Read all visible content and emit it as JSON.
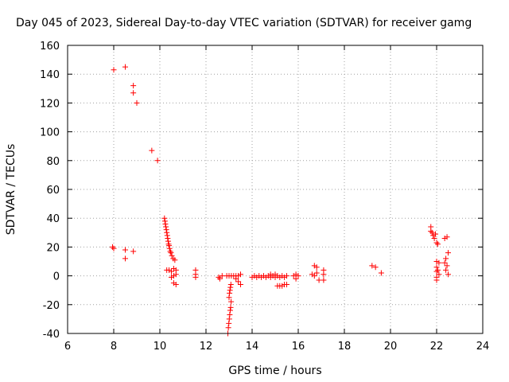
{
  "chart_data": {
    "type": "scatter",
    "title": "Day 045 of 2023, Sidereal Day-to-day VTEC variation (SDTVAR) for receiver gamg",
    "xlabel": "GPS time / hours",
    "ylabel": "SDTVAR / TECUs",
    "xlim": [
      6,
      24
    ],
    "ylim": [
      -40,
      160
    ],
    "xticks": [
      6,
      8,
      10,
      12,
      14,
      16,
      18,
      20,
      22,
      24
    ],
    "xtick_labels": [
      "6",
      "8",
      "10",
      "12",
      "14",
      "16",
      "18",
      "20",
      "22",
      "24"
    ],
    "yticks": [
      -40,
      -20,
      0,
      20,
      40,
      60,
      80,
      100,
      120,
      140,
      160
    ],
    "ytick_labels": [
      "-40",
      "-20",
      "0",
      "20",
      "40",
      "60",
      "80",
      "100",
      "120",
      "140",
      "160"
    ],
    "grid": true,
    "marker": "+",
    "color": "#ff0000",
    "series": [
      {
        "name": "gamg",
        "points": [
          [
            8.0,
            143
          ],
          [
            8.5,
            145
          ],
          [
            8.85,
            132
          ],
          [
            8.85,
            127
          ],
          [
            9.0,
            120
          ],
          [
            9.65,
            87
          ],
          [
            9.9,
            80
          ],
          [
            7.95,
            20
          ],
          [
            8.0,
            19
          ],
          [
            8.5,
            18
          ],
          [
            8.5,
            12
          ],
          [
            8.85,
            17
          ],
          [
            10.2,
            40
          ],
          [
            10.22,
            38
          ],
          [
            10.24,
            36
          ],
          [
            10.26,
            34
          ],
          [
            10.28,
            32
          ],
          [
            10.3,
            30
          ],
          [
            10.32,
            28
          ],
          [
            10.34,
            26
          ],
          [
            10.36,
            24
          ],
          [
            10.38,
            22
          ],
          [
            10.4,
            21
          ],
          [
            10.42,
            19
          ],
          [
            10.45,
            17
          ],
          [
            10.48,
            16
          ],
          [
            10.52,
            14
          ],
          [
            10.58,
            12
          ],
          [
            10.65,
            11
          ],
          [
            10.3,
            4
          ],
          [
            10.4,
            4
          ],
          [
            10.5,
            3
          ],
          [
            10.6,
            5
          ],
          [
            10.7,
            4
          ],
          [
            10.6,
            0
          ],
          [
            10.7,
            1
          ],
          [
            10.5,
            -1
          ],
          [
            10.6,
            -5
          ],
          [
            10.7,
            -6
          ],
          [
            11.55,
            4
          ],
          [
            11.55,
            1
          ],
          [
            11.55,
            -1
          ],
          [
            12.55,
            -1
          ],
          [
            12.6,
            -2
          ],
          [
            12.7,
            0
          ],
          [
            12.9,
            0
          ],
          [
            13.0,
            0
          ],
          [
            13.1,
            0
          ],
          [
            13.2,
            0
          ],
          [
            13.3,
            0
          ],
          [
            12.95,
            -40
          ],
          [
            12.97,
            -36
          ],
          [
            12.99,
            -33
          ],
          [
            13.01,
            -30
          ],
          [
            13.03,
            -27
          ],
          [
            13.05,
            -24
          ],
          [
            13.07,
            -22
          ],
          [
            13.09,
            -18
          ],
          [
            13.0,
            -15
          ],
          [
            13.02,
            -12
          ],
          [
            13.04,
            -10
          ],
          [
            13.06,
            -8
          ],
          [
            13.08,
            -6
          ],
          [
            13.3,
            -2
          ],
          [
            13.4,
            -4
          ],
          [
            13.5,
            -6
          ],
          [
            13.4,
            0
          ],
          [
            13.5,
            1
          ],
          [
            14.0,
            -1
          ],
          [
            14.1,
            0
          ],
          [
            14.2,
            -1
          ],
          [
            14.3,
            0
          ],
          [
            14.4,
            -1
          ],
          [
            14.5,
            0
          ],
          [
            14.6,
            -1
          ],
          [
            14.7,
            0
          ],
          [
            14.8,
            -1
          ],
          [
            14.9,
            0
          ],
          [
            15.0,
            -1
          ],
          [
            15.1,
            0
          ],
          [
            15.2,
            -1
          ],
          [
            15.3,
            0
          ],
          [
            15.4,
            -1
          ],
          [
            15.5,
            0
          ],
          [
            14.8,
            1
          ],
          [
            15.0,
            1
          ],
          [
            15.1,
            -7
          ],
          [
            15.2,
            -7
          ],
          [
            15.3,
            -7
          ],
          [
            15.4,
            -6
          ],
          [
            15.5,
            -6
          ],
          [
            15.8,
            0
          ],
          [
            15.9,
            1
          ],
          [
            16.0,
            0
          ],
          [
            15.9,
            -2
          ],
          [
            16.6,
            1
          ],
          [
            16.7,
            0
          ],
          [
            16.8,
            2
          ],
          [
            16.7,
            7
          ],
          [
            16.8,
            6
          ],
          [
            16.9,
            -3
          ],
          [
            17.1,
            4
          ],
          [
            17.1,
            1
          ],
          [
            17.1,
            -3
          ],
          [
            19.2,
            7
          ],
          [
            19.35,
            6
          ],
          [
            19.6,
            2
          ],
          [
            21.75,
            34
          ],
          [
            21.75,
            31
          ],
          [
            21.8,
            30
          ],
          [
            21.85,
            28
          ],
          [
            21.9,
            26
          ],
          [
            21.95,
            29
          ],
          [
            22.0,
            23
          ],
          [
            22.05,
            22
          ],
          [
            22.35,
            26
          ],
          [
            22.45,
            27
          ],
          [
            22.0,
            10
          ],
          [
            22.1,
            9
          ],
          [
            22.0,
            6
          ],
          [
            22.05,
            4
          ],
          [
            22.0,
            3
          ],
          [
            22.1,
            1
          ],
          [
            22.0,
            -1
          ],
          [
            22.0,
            -3
          ],
          [
            22.4,
            12
          ],
          [
            22.5,
            16
          ],
          [
            22.35,
            9
          ],
          [
            22.45,
            7
          ],
          [
            22.4,
            4
          ],
          [
            22.5,
            1
          ]
        ]
      }
    ]
  }
}
